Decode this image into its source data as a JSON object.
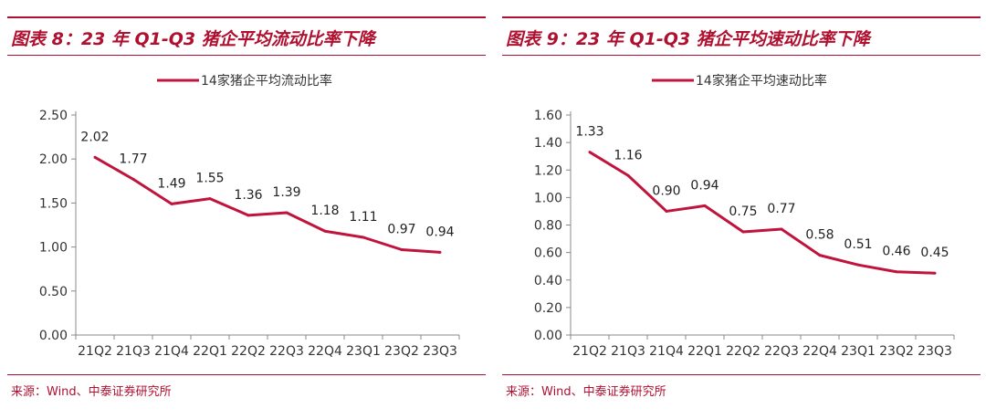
{
  "panels": [
    {
      "title": "图表 8：23 年 Q1-Q3 猪企平均流动比率下降",
      "source": "来源：Wind、中泰证券研究所",
      "chart_data": {
        "type": "line",
        "title": "",
        "xlabel": "",
        "ylabel": "",
        "categories": [
          "21Q2",
          "21Q3",
          "21Q4",
          "22Q1",
          "22Q2",
          "22Q3",
          "22Q4",
          "23Q1",
          "23Q2",
          "23Q3"
        ],
        "series": [
          {
            "name": "14家猪企平均流动比率",
            "values": [
              2.02,
              1.77,
              1.49,
              1.55,
              1.36,
              1.39,
              1.18,
              1.11,
              0.97,
              0.94
            ]
          }
        ],
        "y_ticks": [
          "0.00",
          "0.50",
          "1.00",
          "1.50",
          "2.00",
          "2.50"
        ],
        "ylim": [
          0,
          2.5
        ],
        "value_labels": [
          "2.02",
          "1.77",
          "1.49",
          "1.55",
          "1.36",
          "1.39",
          "1.18",
          "1.11",
          "0.97",
          "0.94"
        ],
        "legend": "top",
        "grid": false,
        "color": "#c0143c"
      }
    },
    {
      "title": "图表 9：23 年 Q1-Q3 猪企平均速动比率下降",
      "source": "来源：Wind、中泰证券研究所",
      "chart_data": {
        "type": "line",
        "title": "",
        "xlabel": "",
        "ylabel": "",
        "categories": [
          "21Q2",
          "21Q3",
          "21Q4",
          "22Q1",
          "22Q2",
          "22Q3",
          "22Q4",
          "23Q1",
          "23Q2",
          "23Q3"
        ],
        "series": [
          {
            "name": "14家猪企平均速动比率",
            "values": [
              1.33,
              1.16,
              0.9,
              0.94,
              0.75,
              0.77,
              0.58,
              0.51,
              0.46,
              0.45
            ]
          }
        ],
        "y_ticks": [
          "0.00",
          "0.20",
          "0.40",
          "0.60",
          "0.80",
          "1.00",
          "1.20",
          "1.40",
          "1.60"
        ],
        "ylim": [
          0,
          1.6
        ],
        "value_labels": [
          "1.33",
          "1.16",
          "0.90",
          "0.94",
          "0.75",
          "0.77",
          "0.58",
          "0.51",
          "0.46",
          "0.45"
        ],
        "legend": "top",
        "grid": false,
        "color": "#c0143c"
      }
    }
  ]
}
